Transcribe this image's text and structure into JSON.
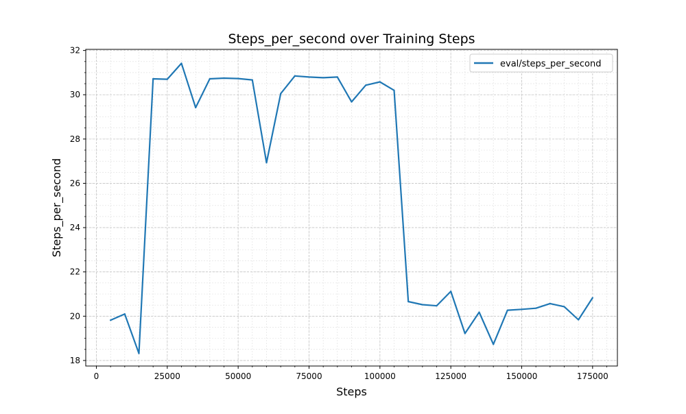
{
  "chart_data": {
    "type": "line",
    "title": "Steps_per_second over Training Steps",
    "xlabel": "Steps",
    "ylabel": "Steps_per_second",
    "xlim": [
      -3750,
      183750
    ],
    "ylim": [
      17.75,
      32.05
    ],
    "x_ticks": [
      0,
      25000,
      50000,
      75000,
      100000,
      125000,
      150000,
      175000
    ],
    "y_ticks": [
      18,
      20,
      22,
      24,
      26,
      28,
      30,
      32
    ],
    "grid": true,
    "minor_grid": true,
    "legend_position": "top-right",
    "series": [
      {
        "name": "eval/steps_per_second",
        "color": "#1f77b4",
        "x": [
          5000,
          10000,
          15000,
          20000,
          25000,
          30000,
          35000,
          40000,
          45000,
          50000,
          55000,
          60000,
          65000,
          70000,
          75000,
          80000,
          85000,
          90000,
          95000,
          100000,
          105000,
          110000,
          115000,
          120000,
          125000,
          130000,
          135000,
          140000,
          145000,
          150000,
          155000,
          160000,
          165000,
          170000,
          175000
        ],
        "y": [
          19.82,
          20.1,
          18.32,
          30.72,
          30.7,
          31.42,
          29.42,
          30.72,
          30.75,
          30.73,
          30.67,
          26.93,
          30.05,
          30.85,
          30.8,
          30.77,
          30.8,
          29.68,
          30.43,
          30.58,
          30.2,
          20.66,
          20.52,
          20.47,
          21.12,
          19.22,
          20.18,
          18.73,
          20.27,
          20.31,
          20.36,
          20.57,
          20.43,
          19.84,
          20.83
        ]
      }
    ]
  }
}
